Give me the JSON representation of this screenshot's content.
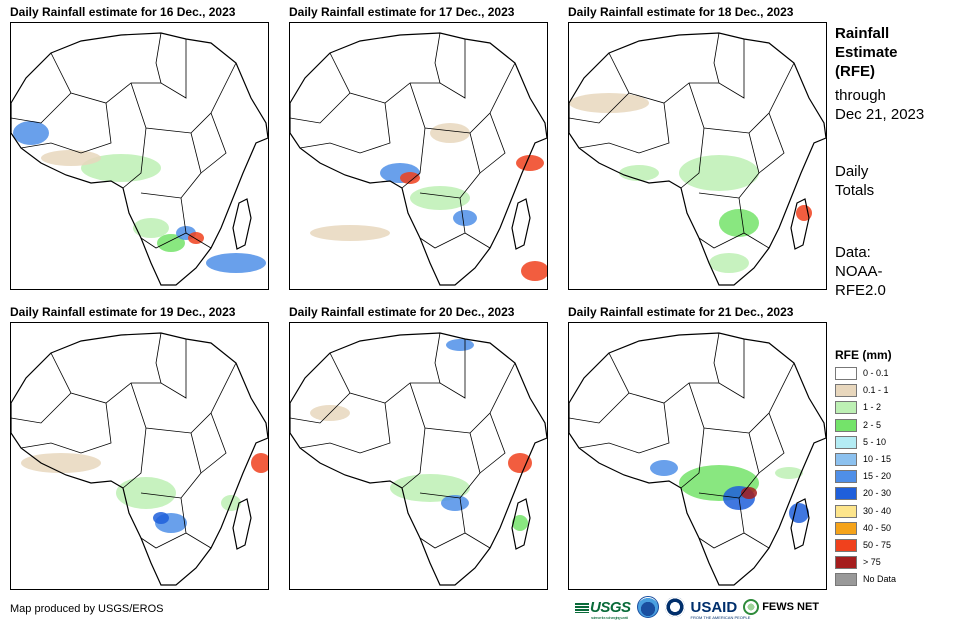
{
  "panels": [
    {
      "title": "Daily Rainfall estimate for 16 Dec., 2023"
    },
    {
      "title": "Daily Rainfall estimate for 17 Dec., 2023"
    },
    {
      "title": "Daily Rainfall estimate for 18 Dec., 2023"
    },
    {
      "title": "Daily Rainfall estimate for 19 Dec., 2023"
    },
    {
      "title": "Daily Rainfall estimate for 20 Dec., 2023"
    },
    {
      "title": "Daily Rainfall estimate for 21 Dec., 2023"
    }
  ],
  "sidebar": {
    "title_line1": "Rainfall",
    "title_line2": "Estimate",
    "title_line3": "(RFE)",
    "through_line1": "through",
    "through_line2": "Dec 21, 2023",
    "daily_line1": "Daily",
    "daily_line2": "Totals",
    "data_line1": "Data:",
    "data_line2": "NOAA-",
    "data_line3": "RFE2.0"
  },
  "legend": {
    "title": "RFE (mm)",
    "items": [
      {
        "label": "0 - 0.1",
        "color": "#ffffff"
      },
      {
        "label": "0.1 - 1",
        "color": "#e8d7bd"
      },
      {
        "label": "1 - 2",
        "color": "#bdf0b4"
      },
      {
        "label": "2 - 5",
        "color": "#74e36a"
      },
      {
        "label": "5 - 10",
        "color": "#b4ecf4"
      },
      {
        "label": "10 - 15",
        "color": "#8cc1ef"
      },
      {
        "label": "15 - 20",
        "color": "#4f8fe8"
      },
      {
        "label": "20 - 30",
        "color": "#1f5fdb"
      },
      {
        "label": "30 - 40",
        "color": "#fde58c"
      },
      {
        "label": "40 - 50",
        "color": "#f5a31a"
      },
      {
        "label": "50 - 75",
        "color": "#f0411d"
      },
      {
        "label": "> 75",
        "color": "#a51d1d"
      },
      {
        "label": "No Data",
        "color": "#999999"
      }
    ]
  },
  "footer": {
    "credit": "Map produced by USGS/EROS",
    "logo_usgs": "USGS",
    "logo_usgs_tag": "science for a changing world",
    "logo_usaid": "USAID",
    "logo_usaid_tag": "FROM THE AMERICAN PEOPLE",
    "logo_fews": "FEWS NET"
  },
  "colors": {
    "outline": "#000000",
    "usgs_green": "#0a6b3a",
    "usaid_blue": "#002f6c"
  }
}
